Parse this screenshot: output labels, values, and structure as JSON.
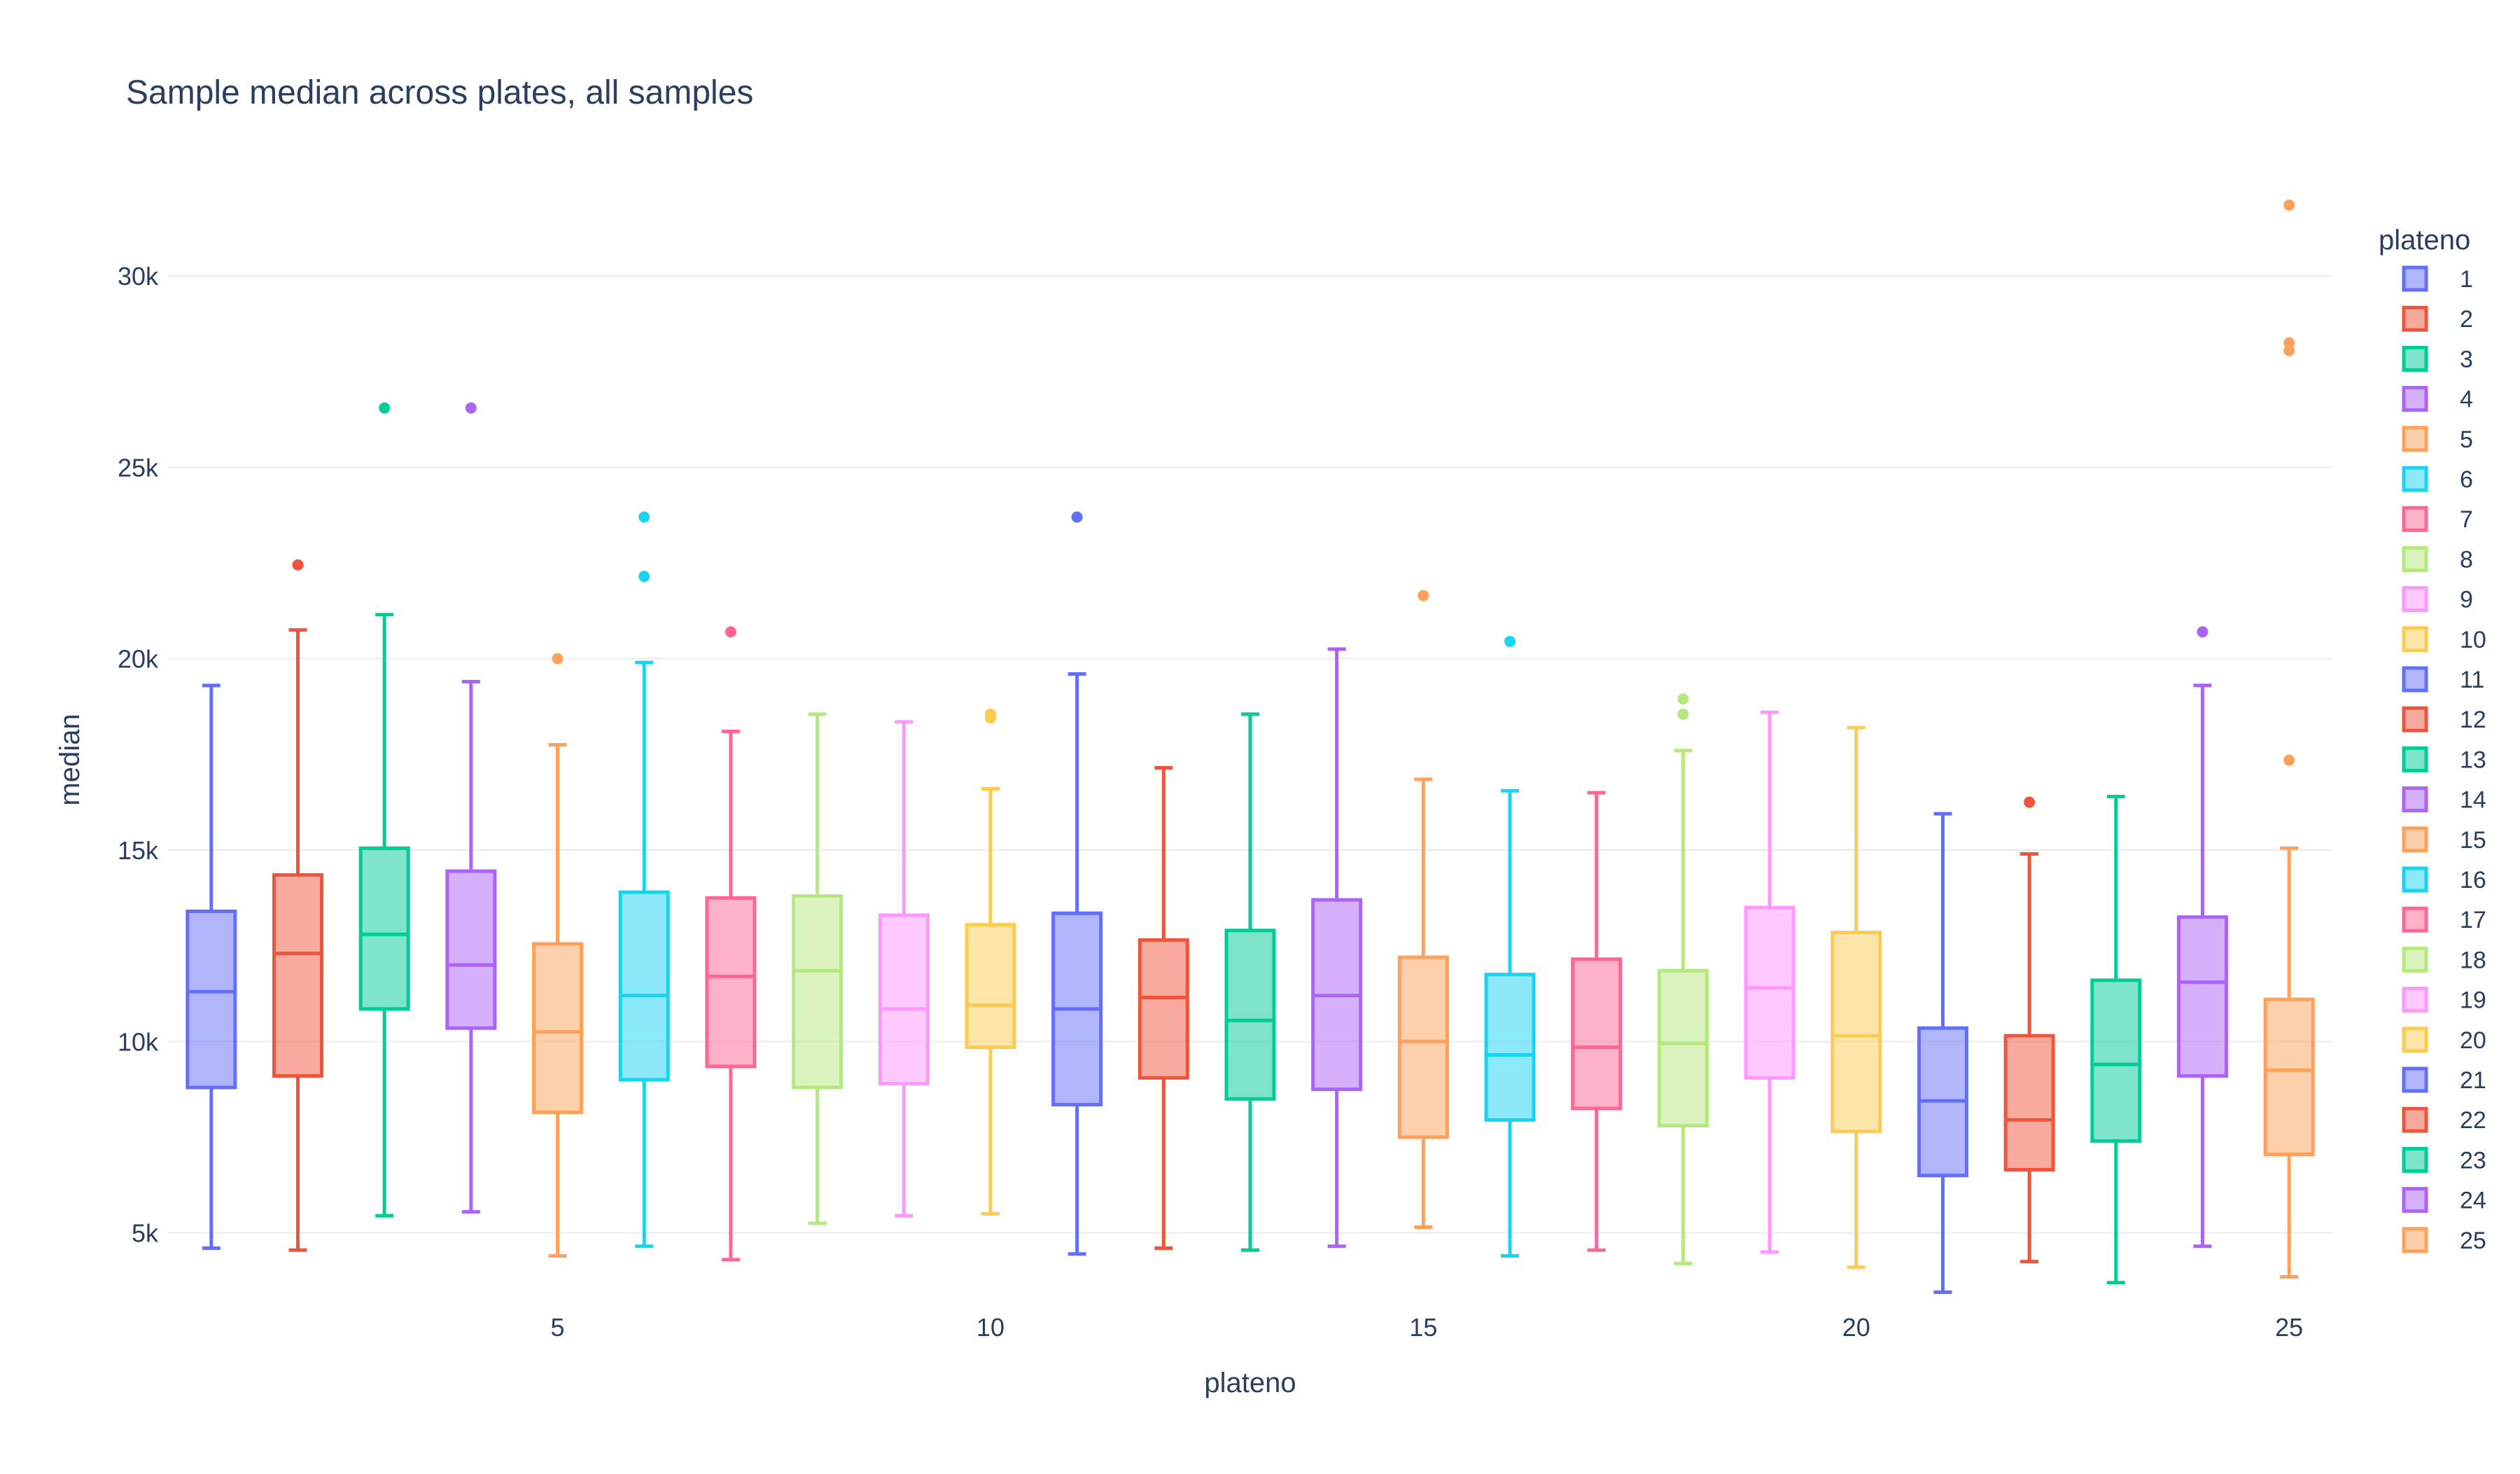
{
  "chart_data": {
    "type": "box",
    "title": "Sample median across plates, all samples",
    "xlabel": "plateno",
    "ylabel": "median",
    "legend_title": "plateno",
    "legend_position": "right",
    "grid": true,
    "ylim": [
      3000,
      33000
    ],
    "xlim": [
      0.5,
      25.5
    ],
    "xticks": [
      5,
      10,
      15,
      20,
      25
    ],
    "xtick_labels": [
      "5",
      "10",
      "15",
      "20",
      "25"
    ],
    "yticks": [
      5000,
      10000,
      15000,
      20000,
      25000,
      30000
    ],
    "ytick_labels": [
      "5k",
      "10k",
      "15k",
      "20k",
      "25k",
      "30k"
    ],
    "series": [
      {
        "name": "1",
        "color": "#636efa",
        "min": 4600,
        "q1": 8800,
        "median": 11300,
        "q3": 13400,
        "max": 19300,
        "outliers": []
      },
      {
        "name": "2",
        "color": "#EF553B",
        "min": 4550,
        "q1": 9100,
        "median": 12300,
        "q3": 14350,
        "max": 20750,
        "outliers": [
          22450
        ]
      },
      {
        "name": "3",
        "color": "#00cc96",
        "min": 5450,
        "q1": 10850,
        "median": 12800,
        "q3": 15050,
        "max": 21150,
        "outliers": [
          26550
        ]
      },
      {
        "name": "4",
        "color": "#ab63fa",
        "min": 5550,
        "q1": 10350,
        "median": 12000,
        "q3": 14450,
        "max": 19400,
        "outliers": [
          26550
        ]
      },
      {
        "name": "5",
        "color": "#FFA15A",
        "min": 4400,
        "q1": 8150,
        "median": 10250,
        "q3": 12550,
        "max": 17750,
        "outliers": [
          20000
        ]
      },
      {
        "name": "6",
        "color": "#19d3f3",
        "min": 4650,
        "q1": 9000,
        "median": 11200,
        "q3": 13900,
        "max": 19900,
        "outliers": [
          22150,
          23700
        ]
      },
      {
        "name": "7",
        "color": "#FF6692",
        "min": 4300,
        "q1": 9350,
        "median": 11700,
        "q3": 13750,
        "max": 18100,
        "outliers": [
          20700
        ]
      },
      {
        "name": "8",
        "color": "#B6E880",
        "min": 5250,
        "q1": 8800,
        "median": 11850,
        "q3": 13800,
        "max": 18550,
        "outliers": []
      },
      {
        "name": "9",
        "color": "#FF97FF",
        "min": 5450,
        "q1": 8900,
        "median": 10850,
        "q3": 13300,
        "max": 18350,
        "outliers": []
      },
      {
        "name": "10",
        "color": "#FECB52",
        "min": 5500,
        "q1": 9850,
        "median": 10950,
        "q3": 13050,
        "max": 16600,
        "outliers": [
          18450,
          18550
        ]
      },
      {
        "name": "11",
        "color": "#636efa",
        "min": 4450,
        "q1": 8350,
        "median": 10850,
        "q3": 13350,
        "max": 19600,
        "outliers": [
          23700
        ]
      },
      {
        "name": "12",
        "color": "#EF553B",
        "min": 4600,
        "q1": 9050,
        "median": 11150,
        "q3": 12650,
        "max": 17150,
        "outliers": []
      },
      {
        "name": "13",
        "color": "#00cc96",
        "min": 4550,
        "q1": 8500,
        "median": 10550,
        "q3": 12900,
        "max": 18550,
        "outliers": []
      },
      {
        "name": "14",
        "color": "#ab63fa",
        "min": 4650,
        "q1": 8750,
        "median": 11200,
        "q3": 13700,
        "max": 20250,
        "outliers": []
      },
      {
        "name": "15",
        "color": "#FFA15A",
        "min": 5150,
        "q1": 7500,
        "median": 10000,
        "q3": 12200,
        "max": 16850,
        "outliers": [
          21650
        ]
      },
      {
        "name": "16",
        "color": "#19d3f3",
        "min": 4400,
        "q1": 7950,
        "median": 9650,
        "q3": 11750,
        "max": 16550,
        "outliers": [
          20450
        ]
      },
      {
        "name": "17",
        "color": "#FF6692",
        "min": 4550,
        "q1": 8250,
        "median": 9850,
        "q3": 12150,
        "max": 16500,
        "outliers": []
      },
      {
        "name": "18",
        "color": "#B6E880",
        "min": 4200,
        "q1": 7800,
        "median": 9950,
        "q3": 11850,
        "max": 17600,
        "outliers": [
          18550,
          18950
        ]
      },
      {
        "name": "19",
        "color": "#FF97FF",
        "min": 4500,
        "q1": 9050,
        "median": 11400,
        "q3": 13500,
        "max": 18600,
        "outliers": []
      },
      {
        "name": "20",
        "color": "#FECB52",
        "min": 4100,
        "q1": 7650,
        "median": 10150,
        "q3": 12850,
        "max": 18200,
        "outliers": []
      },
      {
        "name": "21",
        "color": "#636efa",
        "min": 3450,
        "q1": 6500,
        "median": 8450,
        "q3": 10350,
        "max": 15950,
        "outliers": []
      },
      {
        "name": "22",
        "color": "#EF553B",
        "min": 4250,
        "q1": 6650,
        "median": 7950,
        "q3": 10150,
        "max": 14900,
        "outliers": [
          16250
        ]
      },
      {
        "name": "23",
        "color": "#00cc96",
        "min": 3700,
        "q1": 7400,
        "median": 9400,
        "q3": 11600,
        "max": 16400,
        "outliers": []
      },
      {
        "name": "24",
        "color": "#ab63fa",
        "min": 4650,
        "q1": 9100,
        "median": 11550,
        "q3": 13250,
        "max": 19300,
        "outliers": [
          20700
        ]
      },
      {
        "name": "25",
        "color": "#FFA15A",
        "min": 3850,
        "q1": 7050,
        "median": 9250,
        "q3": 11100,
        "max": 15050,
        "outliers": [
          17350,
          28050,
          28250,
          31850
        ]
      }
    ]
  }
}
